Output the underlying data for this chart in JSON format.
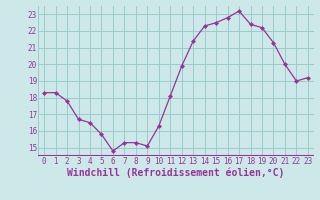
{
  "x": [
    0,
    1,
    2,
    3,
    4,
    5,
    6,
    7,
    8,
    9,
    10,
    11,
    12,
    13,
    14,
    15,
    16,
    17,
    18,
    19,
    20,
    21,
    22,
    23
  ],
  "y": [
    18.3,
    18.3,
    17.8,
    16.7,
    16.5,
    15.8,
    14.8,
    15.3,
    15.3,
    15.1,
    16.3,
    18.1,
    19.9,
    21.4,
    22.3,
    22.5,
    22.8,
    23.2,
    22.4,
    22.2,
    21.3,
    20.0,
    19.0,
    19.2
  ],
  "line_color": "#993399",
  "marker_color": "#993399",
  "background_color": "#cce8e8",
  "grid_color": "#99cccc",
  "xlabel": "Windchill (Refroidissement éolien,°C)",
  "xlabel_color": "#993399",
  "ylim": [
    14.5,
    23.5
  ],
  "yticks": [
    15,
    16,
    17,
    18,
    19,
    20,
    21,
    22,
    23
  ],
  "xticks": [
    0,
    1,
    2,
    3,
    4,
    5,
    6,
    7,
    8,
    9,
    10,
    11,
    12,
    13,
    14,
    15,
    16,
    17,
    18,
    19,
    20,
    21,
    22,
    23
  ],
  "tick_color": "#993399",
  "tick_fontsize": 5.5,
  "xlabel_fontsize": 7.0,
  "xlim": [
    -0.5,
    23.5
  ]
}
